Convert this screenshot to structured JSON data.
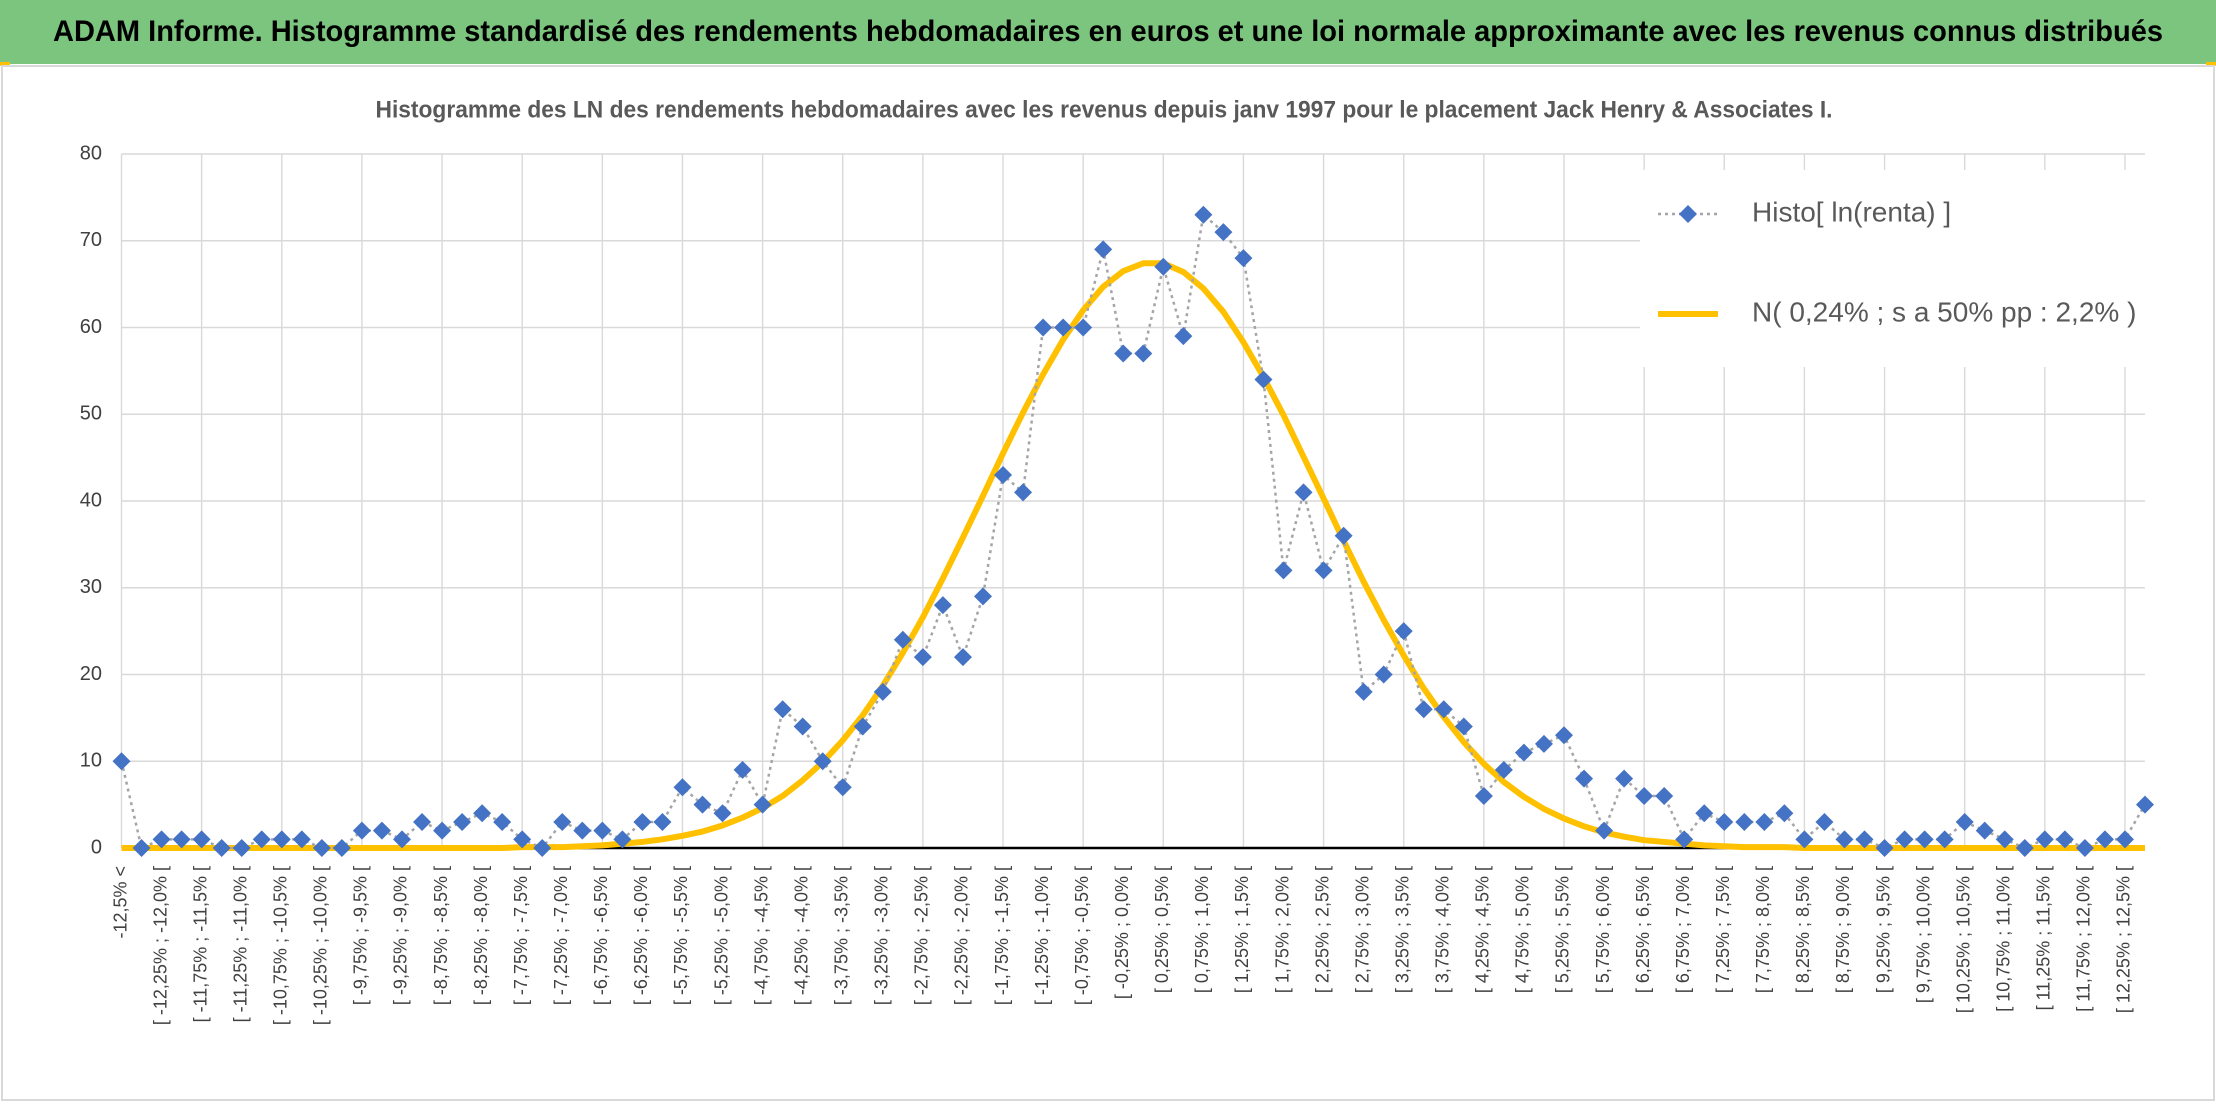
{
  "header": {
    "title": "ADAM Informe. Histogramme standardisé des rendements hebdomadaires en euros et une loi normale approximante avec les revenus connus distribués"
  },
  "chart_data": {
    "type": "line",
    "title": "Histogramme des LN des rendements hebdomadaires avec les revenus depuis janv 1997 pour le placement Jack Henry & Associates I.",
    "categories": [
      "-12,5% <",
      null,
      "[ -12,25% ; -12,0% [",
      null,
      "[ -11,75% ; -11,5% [",
      null,
      "[ -11,25% ; -11,0% [",
      null,
      "[ -10,75% ; -10,5% [",
      null,
      "[ -10,25% ; -10,0% [",
      null,
      "[ -9,75% ; -9,5% [",
      null,
      "[ -9,25% ; -9,0% [",
      null,
      "[ -8,75% ; -8,5% [",
      null,
      "[ -8,25% ; -8,0% [",
      null,
      "[ -7,75% ; -7,5% [",
      null,
      "[ -7,25% ; -7,0% [",
      null,
      "[ -6,75% ; -6,5% [",
      null,
      "[ -6,25% ; -6,0% [",
      null,
      "[ -5,75% ; -5,5% [",
      null,
      "[ -5,25% ; -5,0% [",
      null,
      "[ -4,75% ; -4,5% [",
      null,
      "[ -4,25% ; -4,0% [",
      null,
      "[ -3,75% ; -3,5% [",
      null,
      "[ -3,25% ; -3,0% [",
      null,
      "[ -2,75% ; -2,5% [",
      null,
      "[ -2,25% ; -2,0% [",
      null,
      "[ -1,75% ; -1,5% [",
      null,
      "[ -1,25% ; -1,0% [",
      null,
      "[ -0,75% ; -0,5% [",
      null,
      "[ -0,25% ; 0,0% [",
      null,
      "[ 0,25% ; 0,5% [",
      null,
      "[ 0,75% ; 1,0% [",
      null,
      "[ 1,25% ; 1,5% [",
      null,
      "[ 1,75% ; 2,0% [",
      null,
      "[ 2,25% ; 2,5% [",
      null,
      "[ 2,75% ; 3,0% [",
      null,
      "[ 3,25% ; 3,5% [",
      null,
      "[ 3,75% ; 4,0% [",
      null,
      "[ 4,25% ; 4,5% [",
      null,
      "[ 4,75% ; 5,0% [",
      null,
      "[ 5,25% ; 5,5% [",
      null,
      "[ 5,75% ; 6,0% [",
      null,
      "[ 6,25% ; 6,5% [",
      null,
      "[ 6,75% ; 7,0% [",
      null,
      "[ 7,25% ; 7,5% [",
      null,
      "[ 7,75% ; 8,0% [",
      null,
      "[ 8,25% ; 8,5% [",
      null,
      "[ 8,75% ; 9,0% [",
      null,
      "[ 9,25% ; 9,5% [",
      null,
      "[ 9,75% ; 10,0% [",
      null,
      "[ 10,25% ; 10,5% [",
      null,
      "[ 10,75% ; 11,0% [",
      null,
      "[ 11,25% ; 11,5% [",
      null,
      "[ 11,75% ; 12,0% [",
      null,
      "[ 12,25% ; 12,5% [",
      null
    ],
    "series": [
      {
        "name": "Histo[ ln(renta) ]",
        "color": "#4472c4",
        "line_color": "#a5a5a5",
        "line_style": "dotted",
        "marker": "diamond",
        "values": [
          10,
          0,
          1,
          1,
          1,
          0,
          0,
          1,
          1,
          1,
          0,
          0,
          2,
          2,
          1,
          3,
          2,
          3,
          4,
          3,
          1,
          0,
          3,
          2,
          2,
          1,
          3,
          3,
          7,
          5,
          4,
          9,
          5,
          16,
          14,
          10,
          7,
          14,
          18,
          24,
          22,
          28,
          22,
          29,
          43,
          41,
          60,
          60,
          60,
          69,
          57,
          57,
          67,
          59,
          73,
          71,
          68,
          54,
          32,
          41,
          32,
          36,
          18,
          20,
          25,
          16,
          16,
          14,
          6,
          9,
          11,
          12,
          13,
          8,
          2,
          8,
          6,
          6,
          1,
          4,
          3,
          3,
          3,
          4,
          1,
          3,
          1,
          1,
          0,
          1,
          1,
          1,
          3,
          2,
          1,
          0,
          1,
          1,
          0,
          1,
          1,
          5
        ]
      },
      {
        "name": "N( 0,24% ; s a 50% pp : 2,2% )",
        "color": "#ffc000",
        "line_style": "solid",
        "marker": "none",
        "values": [
          0,
          0,
          0,
          0,
          0,
          0,
          0,
          0,
          0,
          0,
          0,
          0,
          0,
          0,
          0,
          0,
          0,
          0,
          0,
          0,
          0.1,
          0.1,
          0.1,
          0.2,
          0.3,
          0.5,
          0.7,
          1.0,
          1.4,
          1.9,
          2.6,
          3.5,
          4.6,
          6.0,
          7.8,
          9.9,
          12.4,
          15.3,
          18.7,
          22.5,
          26.6,
          31.1,
          35.8,
          40.6,
          45.5,
          50.2,
          54.6,
          58.6,
          62.0,
          64.7,
          66.5,
          67.4,
          67.4,
          66.4,
          64.5,
          61.8,
          58.3,
          54.3,
          49.9,
          45.1,
          40.3,
          35.4,
          30.7,
          26.3,
          22.2,
          18.4,
          15.1,
          12.2,
          9.7,
          7.6,
          5.9,
          4.5,
          3.4,
          2.5,
          1.8,
          1.3,
          0.9,
          0.7,
          0.5,
          0.3,
          0.2,
          0.1,
          0.1,
          0.1,
          0,
          0,
          0,
          0,
          0,
          0,
          0,
          0,
          0,
          0,
          0,
          0,
          0,
          0,
          0,
          0,
          0,
          0
        ]
      }
    ],
    "ylim": [
      0,
      80
    ],
    "yticks": [
      0,
      10,
      20,
      30,
      40,
      50,
      60,
      70,
      80
    ],
    "grid": true,
    "legend": "upper right"
  }
}
